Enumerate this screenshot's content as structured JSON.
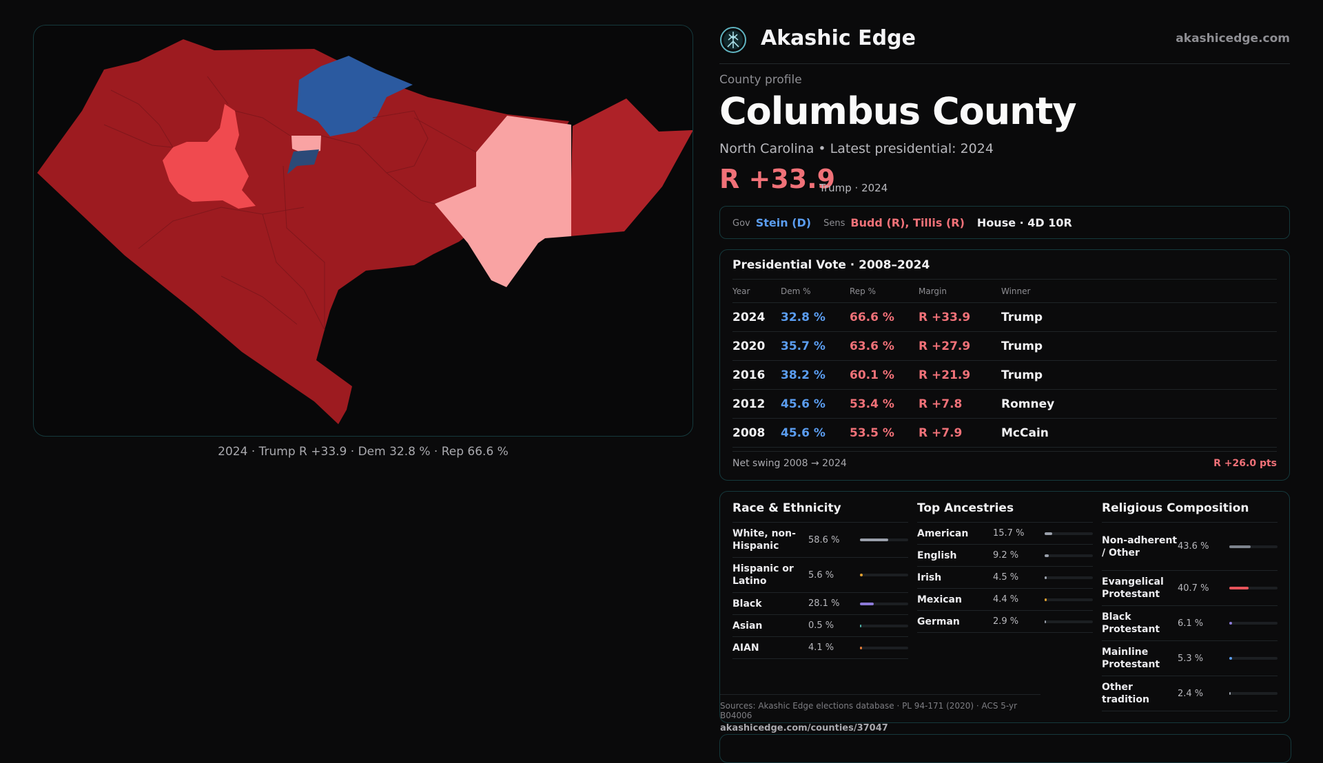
{
  "brand": {
    "name": "Akashic Edge",
    "site": "akashicedge.com",
    "logo_icon": "tree-of-life-icon"
  },
  "profile": {
    "kicker": "County profile",
    "title": "Columbus County",
    "subtitle": "North Carolina • Latest presidential: 2024",
    "margin": "R +33.9",
    "margin_note": "Trump · 2024"
  },
  "officials": {
    "gov_label": "Gov",
    "gov": "Stein (D)",
    "sens_label": "Sens",
    "sens": "Budd (R), Tillis (R)",
    "house": "House · 4D 10R"
  },
  "map": {
    "caption": "2024 · Trump R +33.9 · Dem 32.8 % · Rep 66.6 %",
    "colors": {
      "safe_r": "#9d1b20",
      "likely_r": "#ae2228",
      "lean_r": "#f04a4f",
      "tilt_r": "#f9a3a3",
      "lean_d": "#2b5aa0",
      "safe_d": "#2c4a78"
    }
  },
  "presidential": {
    "title": "Presidential Vote · 2008–2024",
    "headers": {
      "year": "Year",
      "dem": "Dem %",
      "rep": "Rep %",
      "margin": "Margin",
      "winner": "Winner"
    },
    "rows": [
      {
        "year": "2024",
        "dem": "32.8 %",
        "rep": "66.6 %",
        "margin": "R +33.9",
        "winner": "Trump"
      },
      {
        "year": "2020",
        "dem": "35.7 %",
        "rep": "63.6 %",
        "margin": "R +27.9",
        "winner": "Trump"
      },
      {
        "year": "2016",
        "dem": "38.2 %",
        "rep": "60.1 %",
        "margin": "R +21.9",
        "winner": "Trump"
      },
      {
        "year": "2012",
        "dem": "45.6 %",
        "rep": "53.4 %",
        "margin": "R +7.8",
        "winner": "Romney"
      },
      {
        "year": "2008",
        "dem": "45.6 %",
        "rep": "53.5 %",
        "margin": "R +7.9",
        "winner": "McCain"
      }
    ],
    "swing_label": "Net swing 2008 → 2024",
    "swing_value": "R +26.0 pts"
  },
  "race": {
    "title": "Race & Ethnicity",
    "items": [
      {
        "name": "White, non-Hispanic",
        "pct": "58.6 %",
        "value": 0.586,
        "color": "#9aa0ab"
      },
      {
        "name": "Hispanic or Latino",
        "pct": "5.6 %",
        "value": 0.056,
        "color": "#e0a030"
      },
      {
        "name": "Black",
        "pct": "28.1 %",
        "value": 0.281,
        "color": "#8c7ad9"
      },
      {
        "name": "Asian",
        "pct": "0.5 %",
        "value": 0.005,
        "color": "#4fb3a8"
      },
      {
        "name": "AIAN",
        "pct": "4.1 %",
        "value": 0.041,
        "color": "#e07b39"
      }
    ]
  },
  "ancestry": {
    "title": "Top Ancestries",
    "items": [
      {
        "name": "American",
        "pct": "15.7 %",
        "value": 0.157,
        "color": "#9aa0ab"
      },
      {
        "name": "English",
        "pct": "9.2 %",
        "value": 0.092,
        "color": "#9aa0ab"
      },
      {
        "name": "Irish",
        "pct": "4.5 %",
        "value": 0.045,
        "color": "#9aa0ab"
      },
      {
        "name": "Mexican",
        "pct": "4.4 %",
        "value": 0.044,
        "color": "#e0a030"
      },
      {
        "name": "German",
        "pct": "2.9 %",
        "value": 0.029,
        "color": "#9aa0ab"
      }
    ]
  },
  "religion": {
    "title": "Religious Composition",
    "items": [
      {
        "name": "Non-adherent / Other",
        "pct": "43.6 %",
        "value": 0.436,
        "color": "#7d838d"
      },
      {
        "name": "Evangelical Protestant",
        "pct": "40.7 %",
        "value": 0.407,
        "color": "#e8545b"
      },
      {
        "name": "Black Protestant",
        "pct": "6.1 %",
        "value": 0.061,
        "color": "#8c7ad9"
      },
      {
        "name": "Mainline Protestant",
        "pct": "5.3 %",
        "value": 0.053,
        "color": "#5b9df0"
      },
      {
        "name": "Other tradition",
        "pct": "2.4 %",
        "value": 0.024,
        "color": "#9aa0ab"
      }
    ]
  },
  "sources": {
    "text": "Sources: Akashic Edge elections database · PL 94-171 (2020) · ACS 5-yr B04006",
    "url": "akashicedge.com/counties/37047"
  }
}
